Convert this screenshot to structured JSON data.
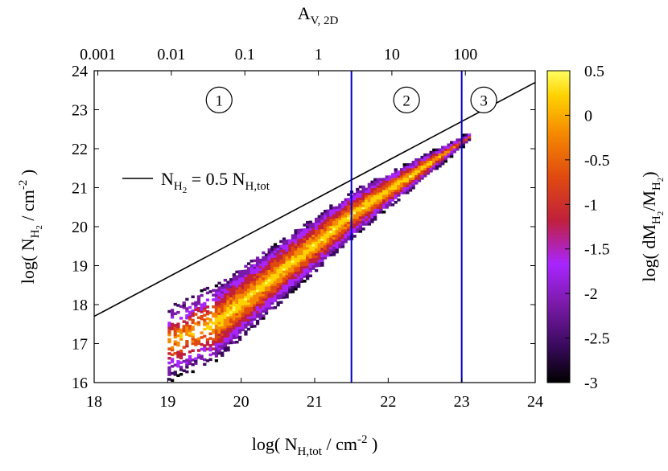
{
  "chart_data": {
    "type": "heatmap",
    "xlabel": {
      "pre": "log( N",
      "sub": "H,tot",
      "mid": " / cm",
      "sup": "-2",
      "post": " )"
    },
    "ylabel": {
      "pre": "log( N",
      "sub": "H",
      "subsub": "2",
      "mid": " / cm",
      "sup": "-2",
      "post": " )"
    },
    "top_label": {
      "main": "A",
      "sub": "V, 2D"
    },
    "colorbar_label": {
      "pre": "log( dM",
      "sub1": "H",
      "subsub1": "2",
      "mid": "/M",
      "sub2": "H",
      "subsub2": "2",
      "post": ")"
    },
    "xlim": [
      18,
      24
    ],
    "ylim": [
      16,
      24
    ],
    "x_ticks": [
      "18",
      "19",
      "20",
      "21",
      "22",
      "23",
      "24"
    ],
    "y_ticks": [
      "16",
      "17",
      "18",
      "19",
      "20",
      "21",
      "22",
      "23",
      "24"
    ],
    "top_ticks": [
      {
        "label": "0.001",
        "x": 18.05
      },
      {
        "label": "0.01",
        "x": 19.05
      },
      {
        "label": "0.1",
        "x": 20.05
      },
      {
        "label": "1",
        "x": 21.05
      },
      {
        "label": "10",
        "x": 22.05
      },
      {
        "label": "100",
        "x": 23.05
      }
    ],
    "colorbar": {
      "min": -3,
      "max": 0.5,
      "ticks": [
        "0.5",
        "0",
        "-0.5",
        "-1",
        "-1.5",
        "-2",
        "-2.5",
        "-3"
      ]
    },
    "reference_line": {
      "label": {
        "pre": "N",
        "sub": "H",
        "subsub": "2",
        "post": " = 0.5 N",
        "sub2": "H,tot"
      },
      "slope": 1,
      "offset": -0.301
    },
    "vertical_lines": [
      21.5,
      23.0
    ],
    "regions": [
      {
        "label": "1",
        "x": 19.7,
        "y": 23.25
      },
      {
        "label": "2",
        "x": 22.25,
        "y": 23.25
      },
      {
        "label": "3",
        "x": 23.3,
        "y": 23.25
      }
    ],
    "colors": {
      "reference": "#000000",
      "vertical": "#0000cc",
      "palette": [
        "#000000",
        "#3a0a5e",
        "#7a1aa8",
        "#a825ff",
        "#c0203c",
        "#e04a10",
        "#f58a00",
        "#ffd200",
        "#ffff60"
      ]
    }
  }
}
